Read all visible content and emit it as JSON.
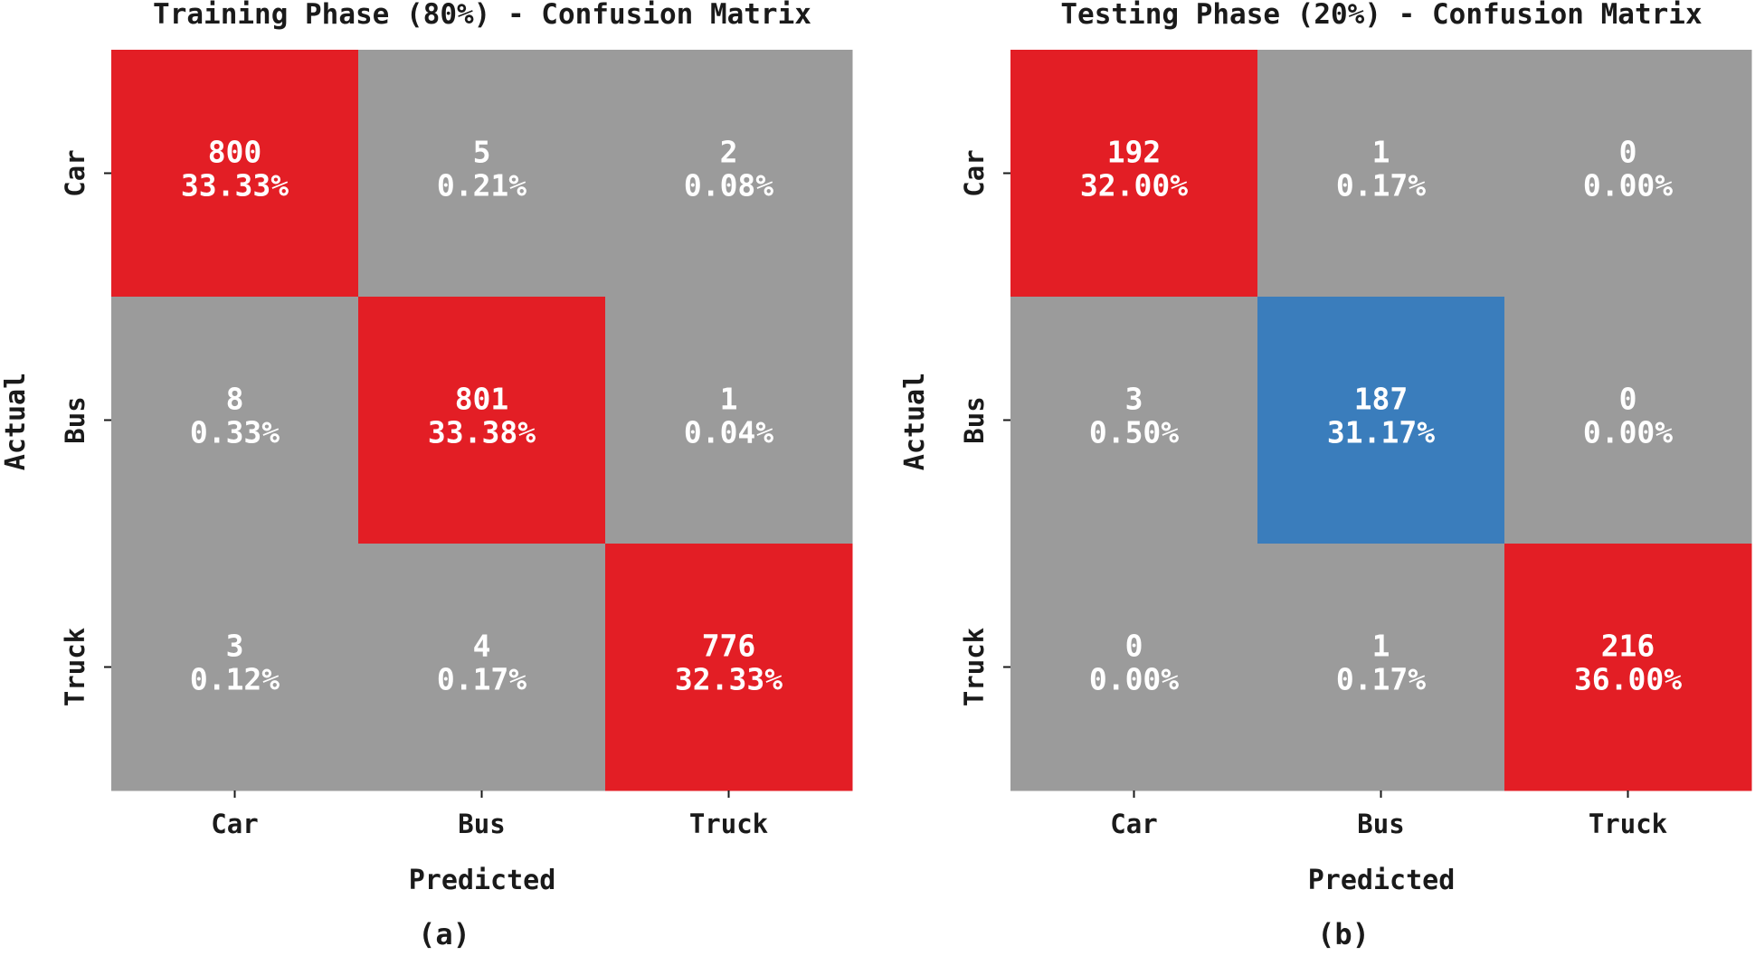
{
  "colors": {
    "diagonal": "#e31e25",
    "highlight": "#3a7dbc",
    "off_diagonal": "#9b9b9b"
  },
  "chart_data": [
    {
      "type": "heatmap",
      "title": "Training Phase (80%) - Confusion Matrix",
      "xlabel": "Predicted",
      "ylabel": "Actual",
      "x_categories": [
        "Car",
        "Bus",
        "Truck"
      ],
      "y_categories": [
        "Car",
        "Bus",
        "Truck"
      ],
      "values": [
        [
          800,
          5,
          2
        ],
        [
          8,
          801,
          1
        ],
        [
          3,
          4,
          776
        ]
      ],
      "percentages": [
        [
          "33.33%",
          "0.21%",
          "0.08%"
        ],
        [
          "0.33%",
          "33.38%",
          "0.04%"
        ],
        [
          "0.12%",
          "0.17%",
          "32.33%"
        ]
      ],
      "cell_colors": [
        [
          "diagonal",
          "off_diagonal",
          "off_diagonal"
        ],
        [
          "off_diagonal",
          "diagonal",
          "off_diagonal"
        ],
        [
          "off_diagonal",
          "off_diagonal",
          "diagonal"
        ]
      ],
      "caption": "(a)"
    },
    {
      "type": "heatmap",
      "title": "Testing Phase (20%) - Confusion Matrix",
      "xlabel": "Predicted",
      "ylabel": "Actual",
      "x_categories": [
        "Car",
        "Bus",
        "Truck"
      ],
      "y_categories": [
        "Car",
        "Bus",
        "Truck"
      ],
      "values": [
        [
          192,
          1,
          0
        ],
        [
          3,
          187,
          0
        ],
        [
          0,
          1,
          216
        ]
      ],
      "percentages": [
        [
          "32.00%",
          "0.17%",
          "0.00%"
        ],
        [
          "0.50%",
          "31.17%",
          "0.00%"
        ],
        [
          "0.00%",
          "0.17%",
          "36.00%"
        ]
      ],
      "cell_colors": [
        [
          "diagonal",
          "off_diagonal",
          "off_diagonal"
        ],
        [
          "off_diagonal",
          "highlight",
          "off_diagonal"
        ],
        [
          "off_diagonal",
          "off_diagonal",
          "diagonal"
        ]
      ],
      "caption": "(b)"
    }
  ]
}
